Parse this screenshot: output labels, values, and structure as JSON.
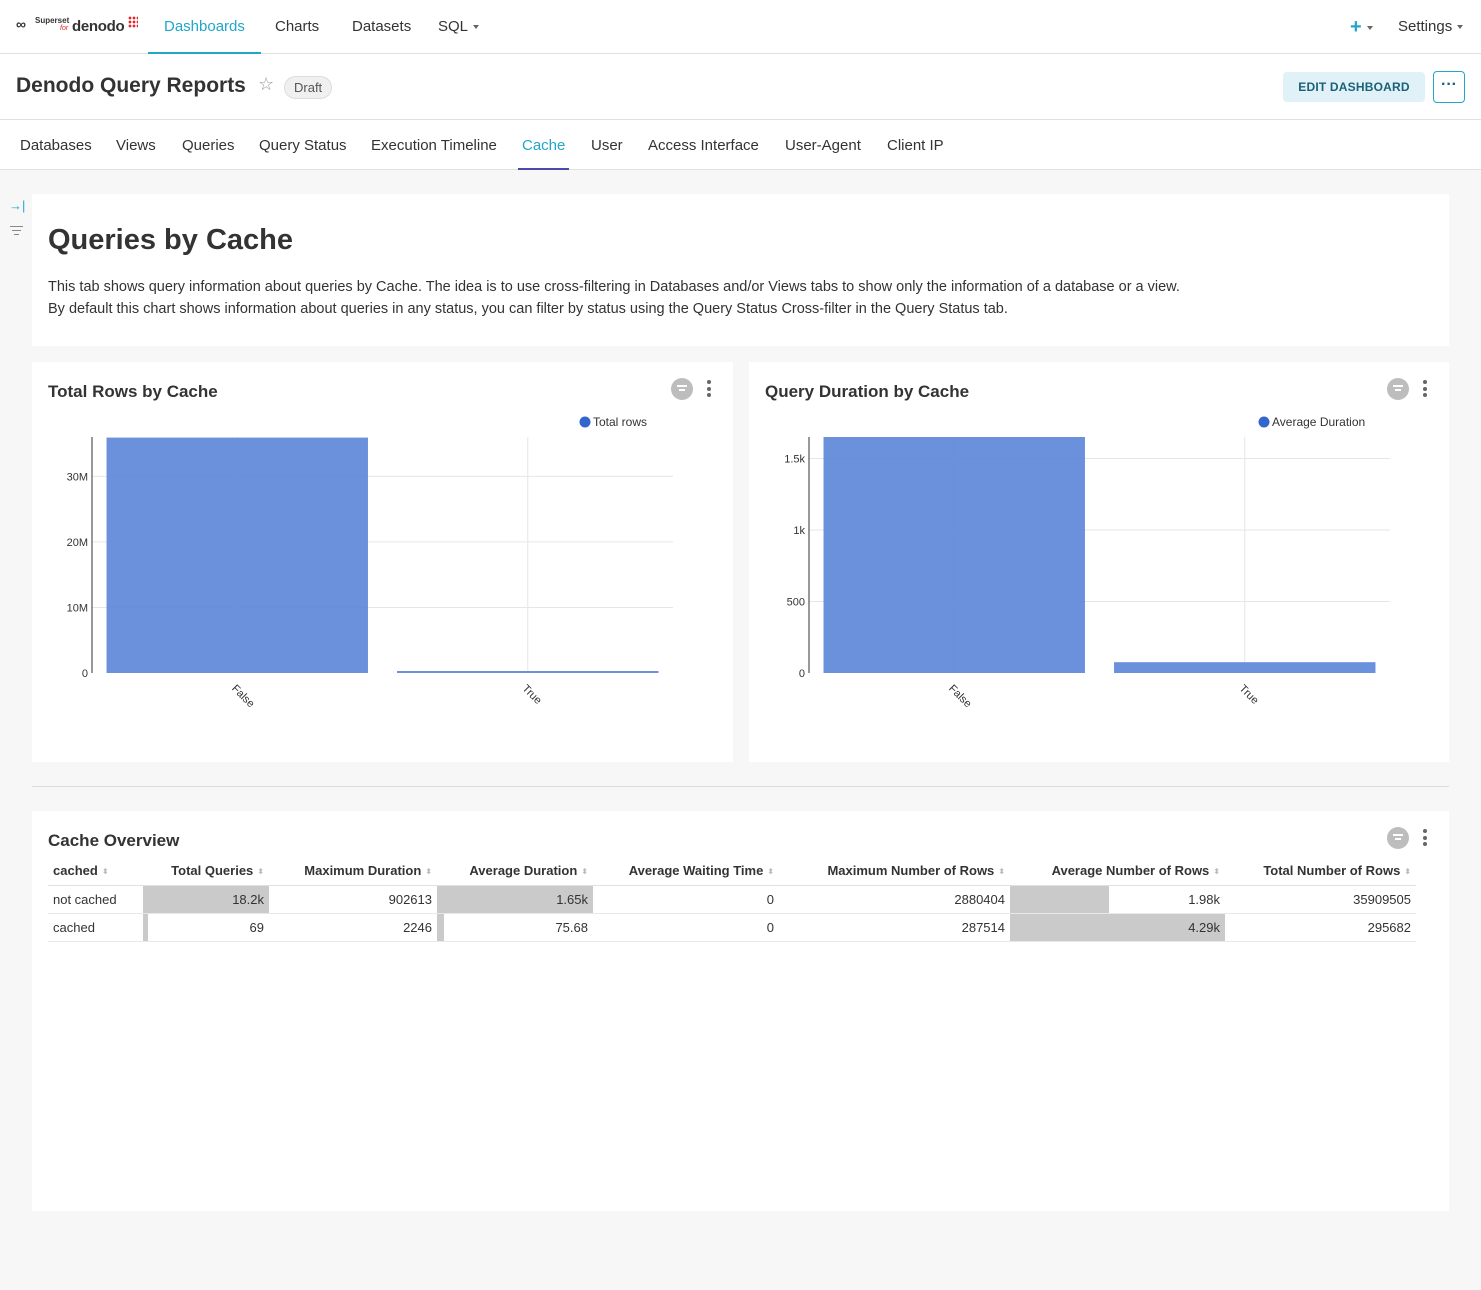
{
  "nav": {
    "logo": {
      "superset": "Superset",
      "for": "for",
      "denodo": "denodo"
    },
    "items": [
      {
        "label": "Dashboards",
        "active": true
      },
      {
        "label": "Charts",
        "active": false
      },
      {
        "label": "Datasets",
        "active": false
      },
      {
        "label": "SQL",
        "active": false
      }
    ],
    "plus": "+",
    "settings": "Settings"
  },
  "header": {
    "title": "Denodo Query Reports",
    "status": "Draft",
    "edit_label": "EDIT DASHBOARD",
    "more_label": "···"
  },
  "tabs": [
    {
      "label": "Databases",
      "active": false
    },
    {
      "label": "Views",
      "active": false
    },
    {
      "label": "Queries",
      "active": false
    },
    {
      "label": "Query Status",
      "active": false
    },
    {
      "label": "Execution Timeline",
      "active": false
    },
    {
      "label": "Cache",
      "active": true
    },
    {
      "label": "User",
      "active": false
    },
    {
      "label": "Access Interface",
      "active": false
    },
    {
      "label": "User-Agent",
      "active": false
    },
    {
      "label": "Client IP",
      "active": false
    }
  ],
  "intro": {
    "title": "Queries by Cache",
    "line1": "This tab shows query information about queries by Cache. The idea is to use cross-filtering in Databases and/or Views tabs to show only the information of a database or a view.",
    "line2": "By default this chart shows information about queries in any status, you can filter by status using the Query Status Cross-filter in the Query Status tab."
  },
  "chart_data": [
    {
      "type": "bar",
      "title": "Total Rows by Cache",
      "categories": [
        "False",
        "True"
      ],
      "series": [
        {
          "name": "Total rows",
          "values": [
            35909505,
            295682
          ]
        }
      ],
      "yticks": [
        "0",
        "10M",
        "20M",
        "30M"
      ],
      "ylim": [
        0,
        36000000
      ],
      "grid": true,
      "legend_position": "top-right",
      "color": "#5b85d9"
    },
    {
      "type": "bar",
      "title": "Query Duration by Cache",
      "categories": [
        "False",
        "True"
      ],
      "series": [
        {
          "name": "Average Duration",
          "values": [
            1650,
            75.68
          ]
        }
      ],
      "yticks": [
        "0",
        "500",
        "1k",
        "1.5k"
      ],
      "ylim": [
        0,
        1650
      ],
      "grid": true,
      "legend_position": "top-right",
      "color": "#5b85d9"
    }
  ],
  "table": {
    "title": "Cache Overview",
    "columns": [
      "cached",
      "Total Queries",
      "Maximum Duration",
      "Average Duration",
      "Average Waiting Time",
      "Maximum Number of Rows",
      "Average Number of Rows",
      "Total Number of Rows"
    ],
    "rows": [
      [
        "not cached",
        "18.2k",
        "902613",
        "1.65k",
        "0",
        "2880404",
        "1.98k",
        "35909505"
      ],
      [
        "cached",
        "69",
        "2246",
        "75.68",
        "0",
        "287514",
        "4.29k",
        "295682"
      ]
    ],
    "bar_fractions": {
      "Total Queries": [
        1.0,
        0.0038
      ],
      "Average Duration": [
        1.0,
        0.046
      ],
      "Average Number of Rows": [
        0.46,
        1.0
      ]
    }
  },
  "colors": {
    "accent": "#20a7c9",
    "bar": "#5b85d9",
    "legend_dot": "#3366cc",
    "cell_bar": "#cacaca"
  }
}
